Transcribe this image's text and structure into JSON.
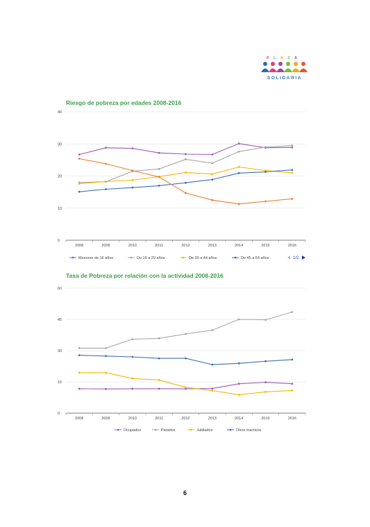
{
  "logo": {
    "top_text": "PLAZA",
    "bottom_text": "SOLIDARIA"
  },
  "page_number": "6",
  "colors": {
    "title": "#3aa04a",
    "purple": "#9b59b6",
    "gray": "#a6a6a6",
    "orange": "#ee7d31",
    "yellow": "#f5b800",
    "blue": "#3c6eb4"
  },
  "chart_data": [
    {
      "type": "line",
      "title": "Riesgo de pobreza por edades 2008-2016",
      "categories": [
        "2008",
        "2009",
        "2010",
        "2011",
        "2012",
        "2013",
        "2014",
        "2015",
        "2016"
      ],
      "ylim": [
        0,
        40
      ],
      "yticks": [
        "0",
        "10",
        "20",
        "30",
        "40"
      ],
      "grid": true,
      "legend_position": "bottom",
      "legend_pager": "1/2",
      "series": [
        {
          "name": "Menores de 16 años",
          "color": "#9b59b6",
          "legend": true,
          "values": [
            26.7,
            28.8,
            28.6,
            27.2,
            26.8,
            26.7,
            30.1,
            28.8,
            28.9
          ]
        },
        {
          "name": "De 16 a 29 años",
          "color": "#a6a6a6",
          "legend": true,
          "values": [
            18.0,
            18.2,
            21.5,
            22.2,
            25.2,
            24.0,
            27.6,
            29.0,
            29.5
          ]
        },
        {
          "name": "De 30 a 44 años",
          "color": "#f5b800",
          "legend": true,
          "values": [
            17.6,
            18.3,
            18.7,
            19.8,
            21.1,
            20.6,
            22.8,
            21.7,
            21.0
          ]
        },
        {
          "name": "De 45 a 64 años",
          "color": "#3c6eb4",
          "legend": true,
          "values": [
            15.1,
            15.9,
            16.4,
            17.0,
            17.9,
            18.9,
            20.9,
            21.3,
            21.9
          ]
        },
        {
          "color": "#ee7d31",
          "legend": false,
          "values": [
            25.4,
            23.8,
            21.7,
            19.7,
            14.7,
            12.5,
            11.3,
            12.1,
            12.9
          ]
        }
      ]
    },
    {
      "type": "line",
      "title": "Tasa de Pobreza por relación con la actividad 2008-2016",
      "categories": [
        "2008",
        "2009",
        "2010",
        "2011",
        "2012",
        "2013",
        "2014",
        "2015",
        "2016"
      ],
      "ylim": [
        0,
        60
      ],
      "yticks": [
        "0",
        "15",
        "30",
        "45",
        "60"
      ],
      "grid": true,
      "legend_position": "bottom",
      "series": [
        {
          "name": "Ocupados",
          "color": "#9b59b6",
          "legend": true,
          "values": [
            11.7,
            11.6,
            11.7,
            11.7,
            11.7,
            11.8,
            14.1,
            14.8,
            14.1
          ]
        },
        {
          "name": "Parados",
          "color": "#a6a6a6",
          "legend": true,
          "values": [
            31.2,
            31.2,
            35.5,
            35.9,
            38.0,
            39.8,
            45.0,
            44.8,
            48.5
          ]
        },
        {
          "name": "Jubilados",
          "color": "#f5b800",
          "legend": true,
          "values": [
            19.4,
            19.4,
            16.6,
            15.9,
            12.4,
            10.8,
            8.8,
            10.2,
            10.9
          ]
        },
        {
          "name": "Otros inactivos",
          "color": "#3c6eb4",
          "legend": true,
          "values": [
            27.8,
            27.4,
            27.0,
            26.3,
            26.3,
            23.3,
            23.9,
            24.9,
            25.7
          ]
        }
      ]
    }
  ]
}
